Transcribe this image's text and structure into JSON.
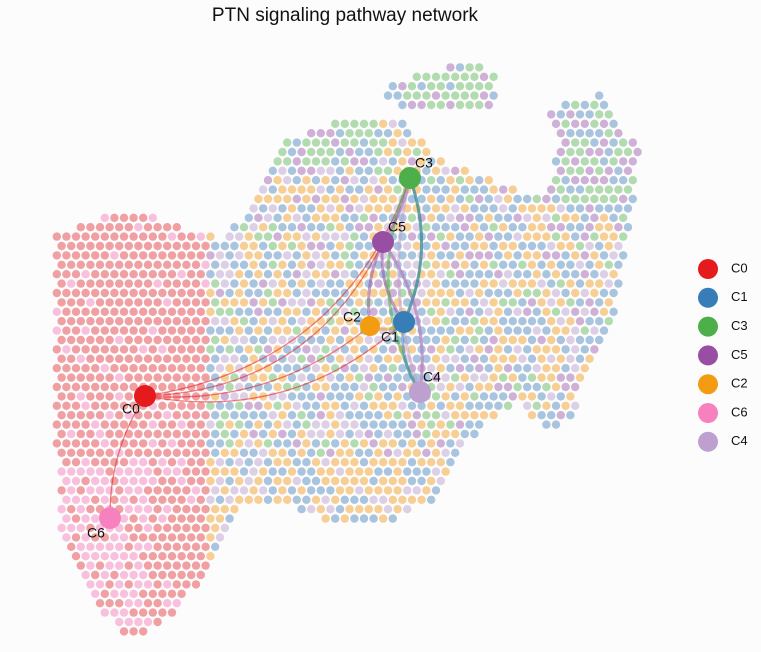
{
  "title": "PTN signaling pathway network",
  "nodes": [
    {
      "label": "C0",
      "color": "#e41a1c"
    },
    {
      "label": "C1",
      "color": "#377eb8"
    },
    {
      "label": "C3",
      "color": "#4daf4a"
    },
    {
      "label": "C5",
      "color": "#984ea3"
    },
    {
      "label": "C2",
      "color": "#f39c12"
    },
    {
      "label": "C6",
      "color": "#f781bf"
    },
    {
      "label": "C4",
      "color": "#bea0d0"
    }
  ]
}
